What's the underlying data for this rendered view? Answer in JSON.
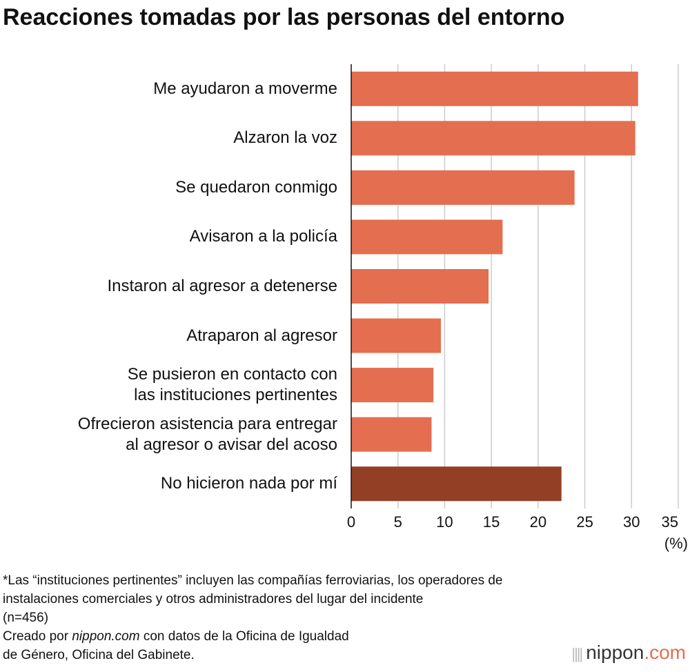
{
  "chart_data": {
    "type": "bar",
    "orientation": "horizontal",
    "title": "Reacciones tomadas por las personas del entorno",
    "categories": [
      "Me ayudaron a moverme",
      "Alzaron la voz",
      "Se quedaron conmigo",
      "Avisaron a la policía",
      "Instaron al agresor a detenerse",
      "Atraparon al agresor",
      "Se pusieron en contacto con\nlas instituciones pertinentes",
      "Ofrecieron asistencia para entregar\nal agresor o avisar del acoso",
      "No hicieron nada por mí"
    ],
    "values": [
      30.7,
      30.4,
      23.9,
      16.2,
      14.7,
      9.6,
      8.8,
      8.6,
      22.5
    ],
    "colors": [
      "#e46e50",
      "#e46e50",
      "#e46e50",
      "#e46e50",
      "#e46e50",
      "#e46e50",
      "#e46e50",
      "#e46e50",
      "#933f26"
    ],
    "xlim": [
      0,
      35
    ],
    "xticks": [
      0,
      5,
      10,
      15,
      20,
      25,
      30,
      35
    ],
    "grid": true,
    "x_label": "(%)",
    "note": "*Las “instituciones pertinentes” incluyen las compañías ferroviarias, los operadores de\ninstalaciones comerciales y otros administradores del lugar del incidente\n(n=456)",
    "source": {
      "before": "Creado por ",
      "site": "nippon.com",
      "after": " con datos de la Oficina de Igualdad\nde Género, Oficina del Gabinete."
    },
    "logo": {
      "name": "nippon",
      "suffix": ".com"
    }
  }
}
